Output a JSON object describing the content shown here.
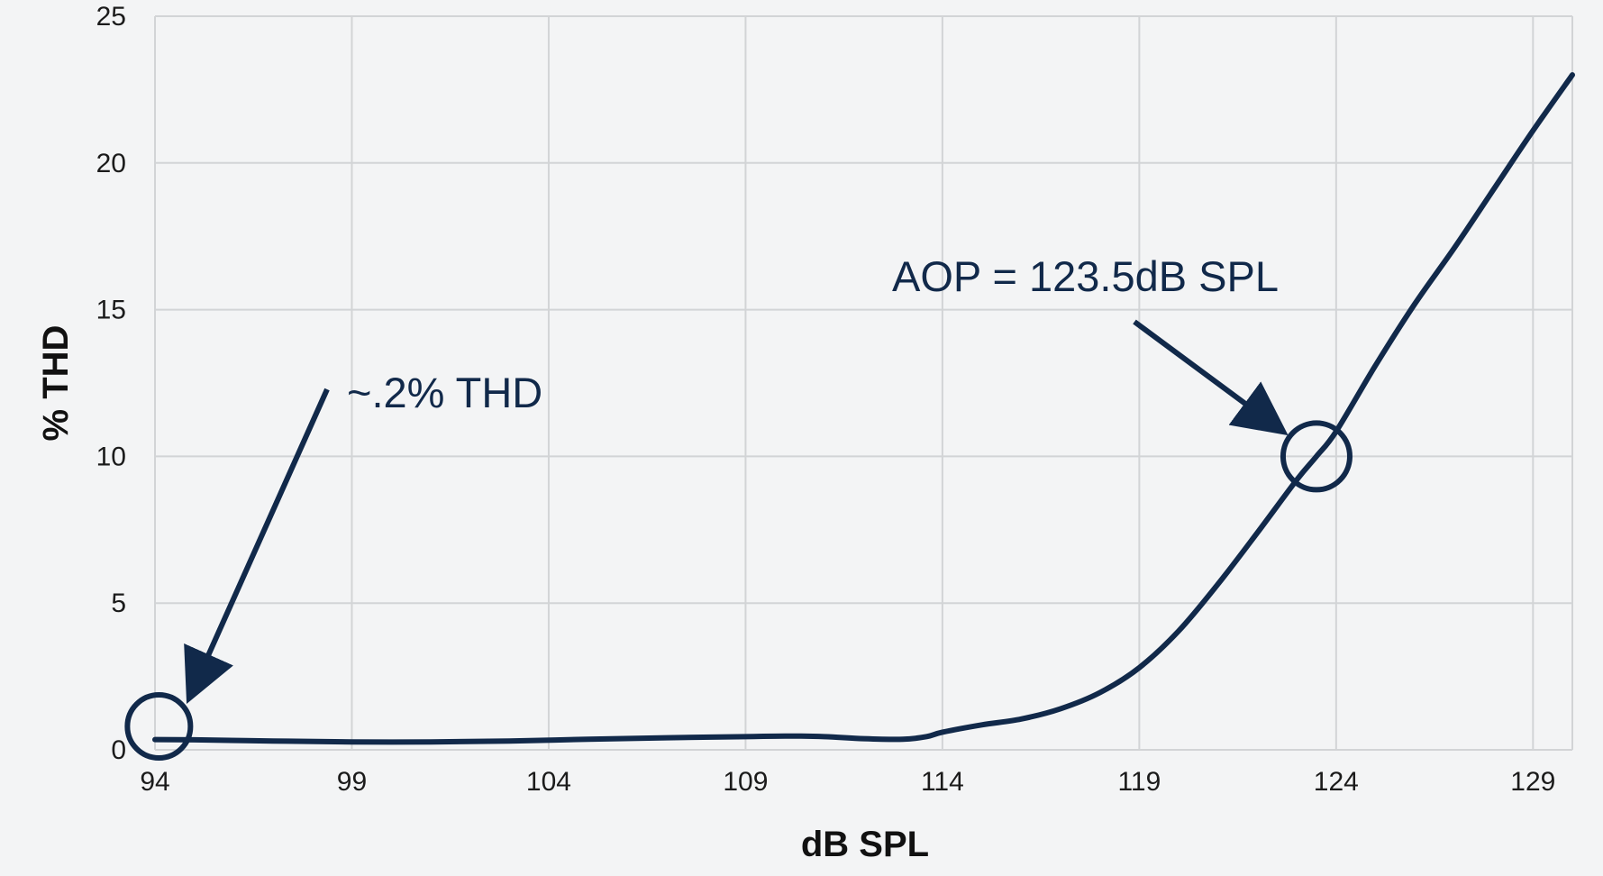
{
  "chart_data": {
    "type": "line",
    "xlabel": "dB SPL",
    "ylabel": "% THD",
    "xlim": [
      94,
      130
    ],
    "ylim": [
      0,
      25
    ],
    "xticks": [
      94,
      99,
      104,
      109,
      114,
      119,
      124,
      129
    ],
    "yticks": [
      0,
      5,
      10,
      15,
      20,
      25
    ],
    "grid": true,
    "series": [
      {
        "color": "#11294a",
        "x": [
          94,
          95,
          97,
          99,
          101,
          103,
          105,
          107,
          109,
          110,
          111,
          112,
          113,
          113.6,
          114,
          115,
          116,
          117,
          118,
          119,
          120,
          121,
          122,
          123,
          123.5,
          124,
          125,
          126,
          127,
          128,
          129,
          130
        ],
        "y": [
          0.35,
          0.34,
          0.3,
          0.27,
          0.27,
          0.3,
          0.36,
          0.41,
          0.45,
          0.47,
          0.45,
          0.38,
          0.36,
          0.45,
          0.6,
          0.85,
          1.05,
          1.4,
          1.95,
          2.8,
          4.05,
          5.65,
          7.4,
          9.2,
          10.0,
          10.85,
          13.1,
          15.2,
          17.1,
          19.1,
          21.1,
          23.0
        ]
      }
    ],
    "annotations": [
      {
        "text": "~.2% THD",
        "point": [
          94.1,
          0.8
        ]
      },
      {
        "text": "AOP = 123.5dB SPL",
        "point": [
          123.5,
          10
        ]
      }
    ]
  }
}
